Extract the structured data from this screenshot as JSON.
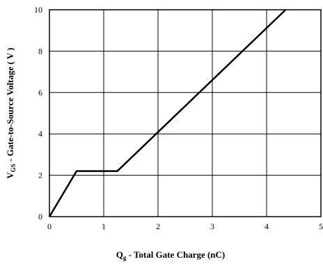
{
  "chart_data": {
    "type": "line",
    "title": "",
    "xlabel": {
      "main": "Q",
      "sub": "g",
      "rest": " - Total Gate Charge (nC)"
    },
    "ylabel": {
      "main": "V",
      "sub": "GS",
      "rest": " - Gate-to-Source Voltage ( V )"
    },
    "xlim": [
      0,
      5
    ],
    "ylim": [
      0,
      10
    ],
    "xticks": [
      0,
      1,
      2,
      3,
      4,
      5
    ],
    "yticks": [
      0,
      2,
      4,
      6,
      8,
      10
    ],
    "grid": true,
    "series": [
      {
        "x": [
          0,
          0.5,
          1.25,
          4.35
        ],
        "y": [
          0,
          2.2,
          2.2,
          10
        ],
        "color": "#000000"
      }
    ]
  }
}
